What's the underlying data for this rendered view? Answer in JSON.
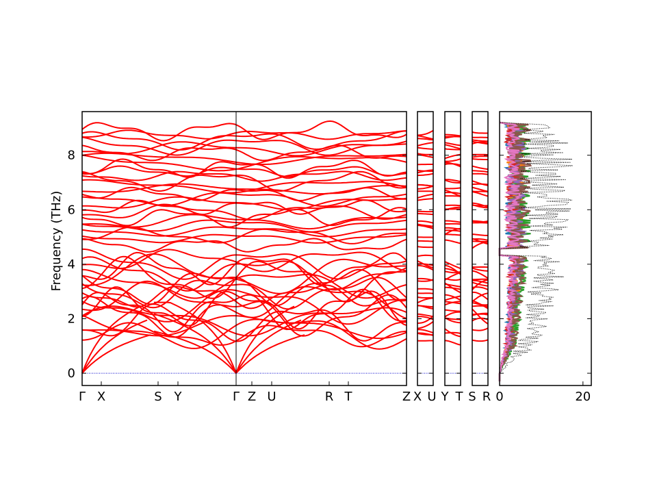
{
  "chart_data": [
    {
      "type": "line",
      "title": "",
      "xlabel": "",
      "ylabel": "Frequency (THz)",
      "ylim": [
        -0.45,
        9.6
      ],
      "yticks": [
        0,
        2,
        4,
        6,
        8
      ],
      "grid": false,
      "legend": "none",
      "segments": [
        {
          "name": "Γ-X-S-Y-Γ",
          "xlabels": [
            "Γ",
            "X",
            "S",
            "Y",
            "Γ"
          ]
        },
        {
          "name": "Z-U-R-T-Z",
          "xlabels": [
            "Z",
            "U",
            "R",
            "T",
            "Z"
          ]
        },
        {
          "name": "X-U",
          "xlabels": [
            "X",
            "U"
          ]
        },
        {
          "name": "Y-T",
          "xlabels": [
            "Y",
            "T"
          ]
        },
        {
          "name": "S-R",
          "xlabels": [
            "S",
            "R"
          ]
        }
      ],
      "band_color": "#ff0000",
      "zero_line_color": "#0000cc"
    },
    {
      "type": "line",
      "title": "",
      "xlabel": "",
      "ylabel": "",
      "xlim": [
        0,
        22
      ],
      "xticks": [
        "0",
        "20"
      ],
      "ylim": [
        -0.45,
        9.6
      ],
      "legend": "none",
      "series_colors": [
        "#1f77b4",
        "#ff7f0e",
        "#2ca02c",
        "#d62728",
        "#9467bd",
        "#8c564b",
        "#e377c2",
        "#000000"
      ]
    }
  ]
}
